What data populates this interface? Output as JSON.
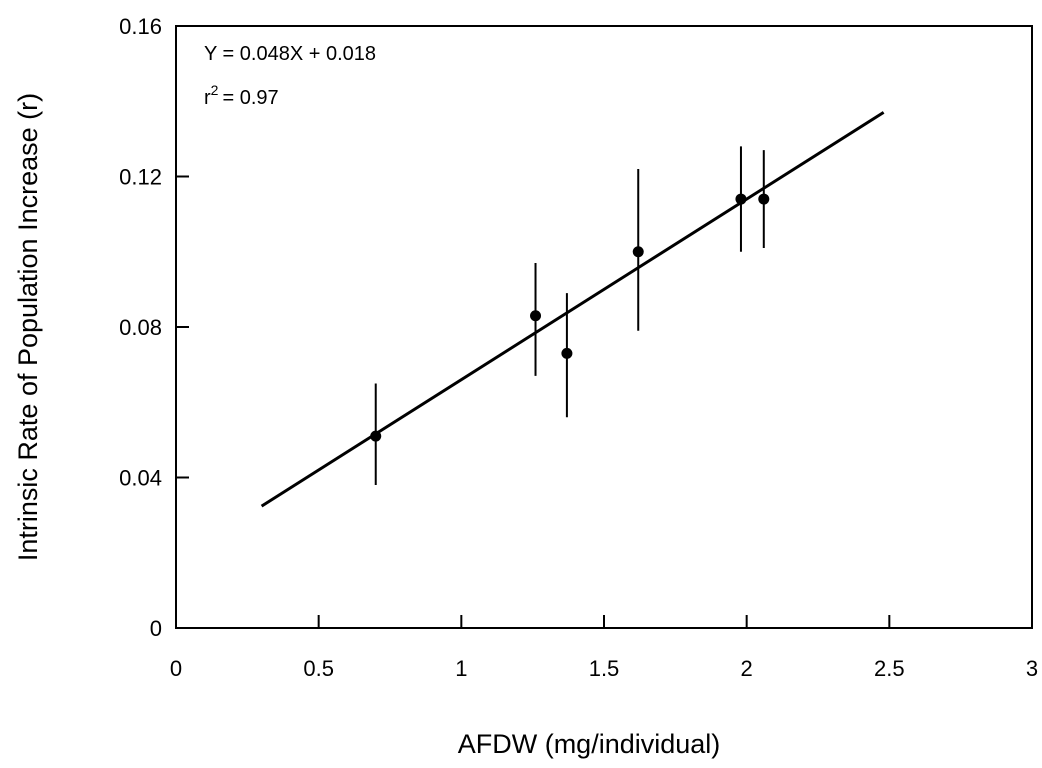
{
  "chart_data": {
    "type": "scatter",
    "title": "",
    "xlabel": "AFDW (mg/individual)",
    "ylabel": "Intrinsic Rate of Population Increase (r)",
    "xlim": [
      0,
      3
    ],
    "ylim": [
      0,
      0.16
    ],
    "x_ticks": [
      0,
      0.5,
      1,
      1.5,
      2,
      2.5,
      3
    ],
    "x_tick_labels": [
      "0",
      "0.5",
      "1",
      "1.5",
      "2",
      "2.5",
      "3"
    ],
    "y_ticks": [
      0,
      0.04,
      0.08,
      0.12,
      0.16
    ],
    "y_tick_labels": [
      "0",
      "0.04",
      "0.08",
      "0.12",
      "0.16"
    ],
    "grid": false,
    "legend": "none",
    "points": [
      {
        "x": 0.7,
        "y": 0.051,
        "y_low": 0.038,
        "y_high": 0.065
      },
      {
        "x": 1.26,
        "y": 0.083,
        "y_low": 0.067,
        "y_high": 0.097
      },
      {
        "x": 1.37,
        "y": 0.073,
        "y_low": 0.056,
        "y_high": 0.089
      },
      {
        "x": 1.62,
        "y": 0.1,
        "y_low": 0.079,
        "y_high": 0.122
      },
      {
        "x": 1.98,
        "y": 0.114,
        "y_low": 0.1,
        "y_high": 0.128
      },
      {
        "x": 2.06,
        "y": 0.114,
        "y_low": 0.101,
        "y_high": 0.127
      }
    ],
    "regression": {
      "slope": 0.048,
      "intercept": 0.018,
      "x_start": 0.3,
      "x_end": 2.48
    },
    "annotations": {
      "equation": "Y = 0.048X + 0.018",
      "r2_base": "r",
      "r2_sup": "2",
      "r2_value": "= 0.97"
    },
    "colors": {
      "ink": "#000000",
      "background": "#ffffff"
    }
  }
}
